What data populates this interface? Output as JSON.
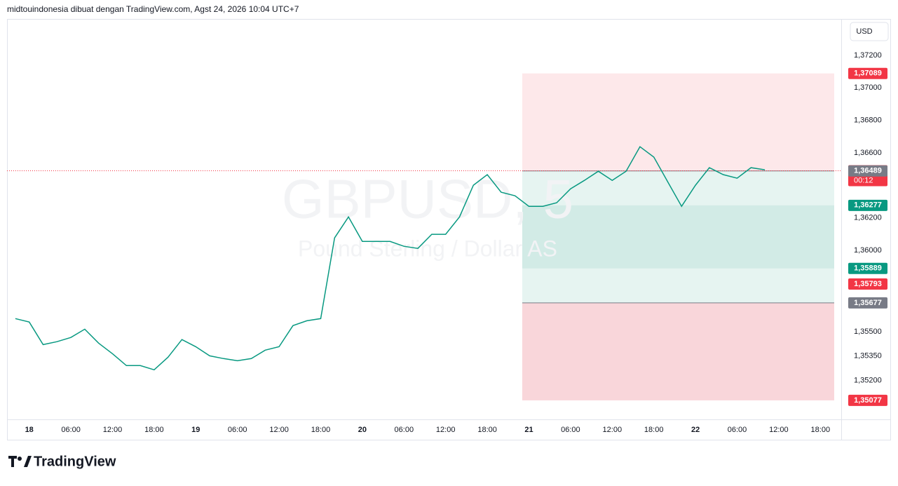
{
  "header": "midtouindonesia dibuat dengan TradingView.com, Agst 24, 2026 10:04 UTC+7",
  "currency_button": "USD",
  "logo": "TradingView",
  "chart_data": {
    "type": "line",
    "title": "GBPUSD, 5",
    "subtitle": "Pound Sterling / Dollar AS",
    "categories": [
      null,
      "18",
      null,
      null,
      "06:00",
      null,
      null,
      "12:00",
      null,
      null,
      "18:00",
      null,
      null,
      "19",
      null,
      null,
      "06:00",
      null,
      null,
      "12:00",
      null,
      null,
      "18:00",
      null,
      null,
      "20",
      null,
      null,
      "06:00",
      null,
      null,
      "12:00",
      null,
      null,
      "18:00",
      null,
      null,
      "21",
      null,
      null,
      "06:00",
      null,
      null,
      "12:00",
      null,
      null,
      "18:00",
      null,
      null,
      "22",
      null,
      null,
      "06:00",
      null,
      null,
      "12:00",
      null,
      null,
      "18:00",
      null
    ],
    "series": [
      {
        "name": "GBPUSD",
        "color": "#089981",
        "values": [
          1.3558,
          1.35559,
          1.3542,
          1.35438,
          1.35464,
          1.35515,
          1.35429,
          1.35364,
          1.35291,
          1.35291,
          1.35265,
          1.35343,
          1.35451,
          1.35407,
          1.35351,
          1.35334,
          1.35321,
          1.35334,
          1.35386,
          1.35407,
          1.35537,
          1.35567,
          1.3558,
          1.36077,
          1.36206,
          1.36055,
          1.36055,
          1.36055,
          1.36025,
          1.36012,
          1.36099,
          1.36099,
          1.36206,
          1.36401,
          1.36466,
          1.36358,
          1.36336,
          1.36271,
          1.36271,
          1.36293,
          1.36379,
          1.36431,
          1.36487,
          1.36431,
          1.36487,
          1.36638,
          1.36574,
          1.36422,
          1.36271,
          1.36401,
          1.36509,
          1.36466,
          1.36444,
          1.36509,
          1.36496,
          null,
          null,
          null,
          null,
          null
        ]
      }
    ],
    "ylim": [
      1.3496,
      1.3742
    ],
    "yticks": [
      {
        "value": 1.372,
        "label": "1,37200"
      },
      {
        "value": 1.37,
        "label": "1,37000"
      },
      {
        "value": 1.368,
        "label": "1,36800"
      },
      {
        "value": 1.366,
        "label": "1,36600"
      },
      {
        "value": 1.362,
        "label": "1,36200"
      },
      {
        "value": 1.36,
        "label": "1,36000"
      },
      {
        "value": 1.355,
        "label": "1,35500"
      },
      {
        "value": 1.3535,
        "label": "1,35350"
      },
      {
        "value": 1.352,
        "label": "1,35200"
      }
    ],
    "price_labels": [
      {
        "value": 1.37089,
        "label": "1,37089",
        "color": "#f23645"
      },
      {
        "value": 1.3649,
        "label": "1,36490",
        "color": "#f23645",
        "countdown": "00:12"
      },
      {
        "value": 1.36489,
        "label": "1,36489",
        "color": "#787b86"
      },
      {
        "value": 1.36277,
        "label": "1,36277",
        "color": "#089981"
      },
      {
        "value": 1.35889,
        "label": "1,35889",
        "color": "#089981"
      },
      {
        "value": 1.35793,
        "label": "1,35793",
        "color": "#f23645"
      },
      {
        "value": 1.35677,
        "label": "1,35677",
        "color": "#787b86"
      },
      {
        "value": 1.35077,
        "label": "1,35077",
        "color": "#f23645"
      }
    ]
  }
}
